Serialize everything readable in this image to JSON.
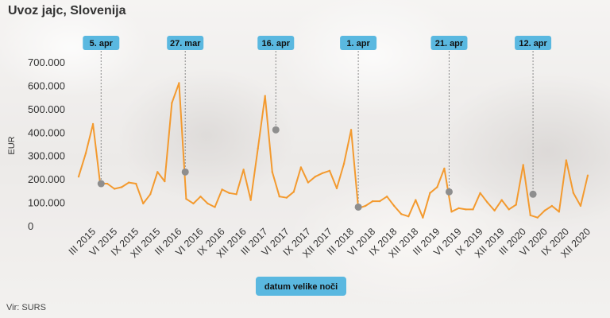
{
  "title": "Uvoz jajc, Slovenija",
  "source": "Vir: SURS",
  "colors": {
    "line": "#f39a2f",
    "marker": "#8e8e8e",
    "flag": "#5ab8e0"
  },
  "chart_data": {
    "type": "line",
    "title": "Uvoz jajc, Slovenija",
    "ylabel": "EUR",
    "xlabel": "datum velike noči",
    "ylim": [
      0,
      700000
    ],
    "yticks": [
      0,
      100000,
      200000,
      300000,
      400000,
      500000,
      600000,
      700000
    ],
    "ytick_labels": [
      "0",
      "100.000",
      "200.000",
      "300.000",
      "400.000",
      "500.000",
      "600.000",
      "700.000"
    ],
    "x_start": "2015-01",
    "xtick_labels": [
      "III 2015",
      "VI 2015",
      "IX 2015",
      "XII 2015",
      "III 2016",
      "VI 2016",
      "IX 2016",
      "XII 2016",
      "III 2017",
      "VI 2017",
      "IX 2017",
      "XII 2017",
      "III 2018",
      "VI 2018",
      "IX 2018",
      "XII 2018",
      "III 2019",
      "VI 2019",
      "IX 2019",
      "XII 2019",
      "III 2020",
      "VI 2020",
      "IX 2020",
      "XII 2020"
    ],
    "values": [
      210000,
      310000,
      435000,
      180000,
      180000,
      158000,
      165000,
      185000,
      180000,
      95000,
      135000,
      230000,
      190000,
      525000,
      610000,
      115000,
      95000,
      125000,
      95000,
      80000,
      155000,
      140000,
      135000,
      240000,
      110000,
      330000,
      555000,
      230000,
      125000,
      120000,
      145000,
      250000,
      185000,
      210000,
      225000,
      235000,
      160000,
      265000,
      410000,
      75000,
      85000,
      105000,
      105000,
      125000,
      85000,
      50000,
      40000,
      110000,
      35000,
      140000,
      165000,
      245000,
      60000,
      75000,
      70000,
      70000,
      140000,
      100000,
      65000,
      110000,
      70000,
      90000,
      260000,
      45000,
      35000,
      65000,
      85000,
      60000,
      280000,
      140000,
      85000,
      215000
    ],
    "easter_markers": [
      {
        "label": "5. apr",
        "year": 2015,
        "month": 4,
        "day": 5,
        "y": 180000
      },
      {
        "label": "27. mar",
        "year": 2016,
        "month": 3,
        "day": 27,
        "y": 230000
      },
      {
        "label": "16. apr",
        "year": 2017,
        "month": 4,
        "day": 16,
        "y": 410000
      },
      {
        "label": "1. apr",
        "year": 2018,
        "month": 4,
        "day": 1,
        "y": 80000
      },
      {
        "label": "21. apr",
        "year": 2019,
        "month": 4,
        "day": 21,
        "y": 145000
      },
      {
        "label": "12. apr",
        "year": 2020,
        "month": 4,
        "day": 12,
        "y": 135000
      }
    ]
  }
}
